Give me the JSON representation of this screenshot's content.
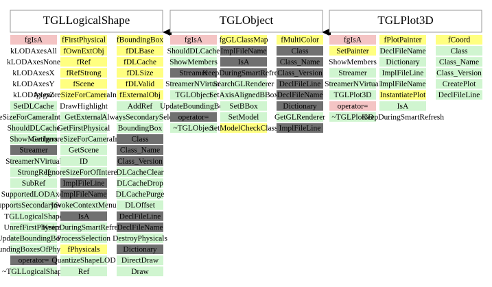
{
  "classes": [
    {
      "name": "TGLLogicalShape",
      "columns": [
        [
          {
            "label": "fgIsA",
            "color": "#f4c4c4"
          },
          {
            "label": "kLODAxesAll",
            "color": "#ffffff"
          },
          {
            "label": "kLODAxesNone",
            "color": "#ffffff"
          },
          {
            "label": "kLODAxesX",
            "color": "#ffffff"
          },
          {
            "label": "kLODAxesY",
            "color": "#ffffff"
          },
          {
            "label": "kLODAxesZ",
            "color": "#ffffff"
          },
          {
            "label": "SetDLCache",
            "color": "#d0f5d0"
          },
          {
            "label": "PreSizeForCameraInterest",
            "color": "#d0f5d0"
          },
          {
            "label": "ShouldDLCache",
            "color": "#d0f5d0"
          },
          {
            "label": "ShowMembers",
            "color": "#d0f5d0"
          },
          {
            "label": "Streamer",
            "color": "#707070"
          },
          {
            "label": "StreamerNVirtual",
            "color": "#d0f5d0"
          },
          {
            "label": "StrongRef",
            "color": "#d0f5d0"
          },
          {
            "label": "SubRef",
            "color": "#d0f5d0"
          },
          {
            "label": "SupportedLODAxes",
            "color": "#d0f5d0"
          },
          {
            "label": "SupportsSecondarySelect",
            "color": "#d0f5d0"
          },
          {
            "label": "TGLLogicalShape",
            "color": "#d0f5d0"
          },
          {
            "label": "UnrefFirstPhysical",
            "color": "#d0f5d0"
          },
          {
            "label": "UpdateBoundingBoxes",
            "color": "#d0f5d0"
          },
          {
            "label": "BoundingBoxesOfPhysicals",
            "color": "#d0f5d0"
          },
          {
            "label": "operator=",
            "color": "#707070"
          },
          {
            "label": "~TGLLogicalShape",
            "color": "#d0f5d0"
          }
        ],
        [
          {
            "label": "fFirstPhysical",
            "color": "#ffff80"
          },
          {
            "label": "fOwnExtObj",
            "color": "#ffff80"
          },
          {
            "label": "fRef",
            "color": "#ffff80"
          },
          {
            "label": "fRefStrong",
            "color": "#ffff80"
          },
          {
            "label": "fScene",
            "color": "#ffff80"
          },
          {
            "label": "fgIgnoreSizeForCameraInterest",
            "color": "#ffff80"
          },
          {
            "label": "DrawHighlight",
            "color": "#ffffff"
          },
          {
            "label": "GetExternal",
            "color": "#d0f5d0"
          },
          {
            "label": "GetFirstPhysical",
            "color": "#d0f5d0"
          },
          {
            "label": "GetIgnoreSizeForCameraInterest",
            "color": "#d0f5d0"
          },
          {
            "label": "GetScene",
            "color": "#d0f5d0"
          },
          {
            "label": "ID",
            "color": "#d0f5d0"
          },
          {
            "label": "IgnoreSizeForOfInterest",
            "color": "#d0f5d0"
          },
          {
            "label": "ImplFileLine",
            "color": "#707070"
          },
          {
            "label": "ImplFileName",
            "color": "#707070"
          },
          {
            "label": "InvokeContextMenu",
            "color": "#d0f5d0"
          },
          {
            "label": "IsA",
            "color": "#707070"
          },
          {
            "label": "KeepDuringSmartRefresh",
            "color": "#d0f5d0"
          },
          {
            "label": "ProcessSelection",
            "color": "#d0f5d0"
          },
          {
            "label": "fPhysicals",
            "color": "#ffff80"
          },
          {
            "label": "QuantizeShapeLOD",
            "color": "#d0f5d0"
          },
          {
            "label": "Ref",
            "color": "#d0f5d0"
          }
        ],
        [
          {
            "label": "fBoundingBox",
            "color": "#ffff80"
          },
          {
            "label": "fDLBase",
            "color": "#ffff80"
          },
          {
            "label": "fDLCache",
            "color": "#ffff80"
          },
          {
            "label": "fDLSize",
            "color": "#ffff80"
          },
          {
            "label": "fDLValid",
            "color": "#ffff80"
          },
          {
            "label": "fExternalObj",
            "color": "#ffff80"
          },
          {
            "label": "AddRef",
            "color": "#d0f5d0"
          },
          {
            "label": "AlwaysSecondarySelect",
            "color": "#d0f5d0"
          },
          {
            "label": "BoundingBox",
            "color": "#d0f5d0"
          },
          {
            "label": "Class",
            "color": "#707070"
          },
          {
            "label": "Class_Name",
            "color": "#707070"
          },
          {
            "label": "Class_Version",
            "color": "#707070"
          },
          {
            "label": "DLCacheClear",
            "color": "#d0f5d0"
          },
          {
            "label": "DLCacheDrop",
            "color": "#d0f5d0"
          },
          {
            "label": "DLCachePurge",
            "color": "#d0f5d0"
          },
          {
            "label": "DLOffset",
            "color": "#d0f5d0"
          },
          {
            "label": "DeclFileLine",
            "color": "#707070"
          },
          {
            "label": "DeclFileName",
            "color": "#707070"
          },
          {
            "label": "DestroyPhysicals",
            "color": "#d0f5d0"
          },
          {
            "label": "Dictionary",
            "color": "#707070"
          },
          {
            "label": "DirectDraw",
            "color": "#d0f5d0"
          },
          {
            "label": "Draw",
            "color": "#d0f5d0"
          }
        ]
      ]
    },
    {
      "name": "TGLObject",
      "columns": [
        [
          {
            "label": "fgIsA",
            "color": "#f4c4c4"
          },
          {
            "label": "ShouldDLCache",
            "color": "#d0f5d0"
          },
          {
            "label": "ShowMembers",
            "color": "#d0f5d0"
          },
          {
            "label": "Streamer",
            "color": "#707070"
          },
          {
            "label": "StreamerNVirtual",
            "color": "#d0f5d0"
          },
          {
            "label": "TGLObject",
            "color": "#d0f5d0"
          },
          {
            "label": "UpdateBoundingBox",
            "color": "#d0f5d0"
          },
          {
            "label": "operator=",
            "color": "#707070"
          },
          {
            "label": "~TGLObject",
            "color": "#d0f5d0"
          }
        ],
        [
          {
            "label": "fgGLClassMap",
            "color": "#ffff80"
          },
          {
            "label": "ImplFileName",
            "color": "#707070"
          },
          {
            "label": "IsA",
            "color": "#707070"
          },
          {
            "label": "KeepDuringSmartRefresh",
            "color": "#707070"
          },
          {
            "label": "SearchGLRenderer",
            "color": "#d0f5d0"
          },
          {
            "label": "SetAxisAlignedBBox",
            "color": "#d0f5d0"
          },
          {
            "label": "SetBBox",
            "color": "#d0f5d0"
          },
          {
            "label": "SetModel",
            "color": "#d0f5d0"
          },
          {
            "label": "SetModelCheckClass",
            "color": "#ffff80"
          }
        ],
        [
          {
            "label": "fMultiColor",
            "color": "#ffff80"
          },
          {
            "label": "Class",
            "color": "#707070"
          },
          {
            "label": "Class_Name",
            "color": "#707070"
          },
          {
            "label": "Class_Version",
            "color": "#707070"
          },
          {
            "label": "DeclFileLine",
            "color": "#707070"
          },
          {
            "label": "DeclFileName",
            "color": "#707070"
          },
          {
            "label": "Dictionary",
            "color": "#707070"
          },
          {
            "label": "GetGLRenderer",
            "color": "#d0f5d0"
          },
          {
            "label": "ImplFileLine",
            "color": "#707070"
          }
        ]
      ]
    },
    {
      "name": "TGLPlot3D",
      "columns": [
        [
          {
            "label": "fgIsA",
            "color": "#f4c4c4"
          },
          {
            "label": "SetPainter",
            "color": "#ffff80"
          },
          {
            "label": "ShowMembers",
            "color": "#ffffff"
          },
          {
            "label": "Streamer",
            "color": "#d0f5d0"
          },
          {
            "label": "StreamerNVirtual",
            "color": "#d0f5d0"
          },
          {
            "label": "TGLPlot3D",
            "color": "#d0f5d0"
          },
          {
            "label": "operator=",
            "color": "#f4c4c4"
          },
          {
            "label": "~TGLPlot3D",
            "color": "#d0f5d0"
          }
        ],
        [
          {
            "label": "fPlotPainter",
            "color": "#ffff80"
          },
          {
            "label": "DeclFileName",
            "color": "#d0f5d0"
          },
          {
            "label": "Dictionary",
            "color": "#d0f5d0"
          },
          {
            "label": "ImplFileLine",
            "color": "#d0f5d0"
          },
          {
            "label": "ImplFileName",
            "color": "#d0f5d0"
          },
          {
            "label": "InstantiatePlot",
            "color": "#ffff80"
          },
          {
            "label": "IsA",
            "color": "#d0f5d0"
          },
          {
            "label": "KeepDuringSmartRefresh",
            "color": "#ffffff"
          }
        ],
        [
          {
            "label": "fCoord",
            "color": "#ffff80"
          },
          {
            "label": "Class",
            "color": "#d0f5d0"
          },
          {
            "label": "Class_Name",
            "color": "#d0f5d0"
          },
          {
            "label": "Class_Version",
            "color": "#d0f5d0"
          },
          {
            "label": "CreatePlot",
            "color": "#d0f5d0"
          },
          {
            "label": "DeclFileLine",
            "color": "#d0f5d0"
          }
        ]
      ]
    }
  ]
}
